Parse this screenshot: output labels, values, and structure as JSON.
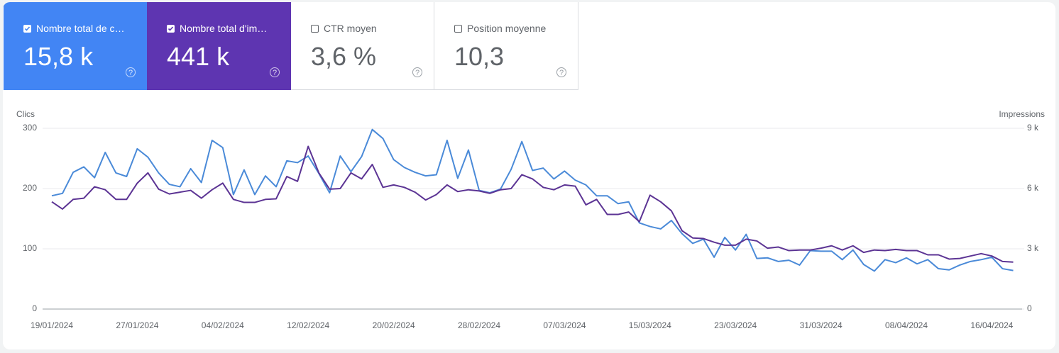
{
  "metrics": [
    {
      "label": "Nombre total de c…",
      "value": "15,8 k"
    },
    {
      "label": "Nombre total d'im…",
      "value": "441 k"
    },
    {
      "label": "CTR moyen",
      "value": "3,6 %"
    },
    {
      "label": "Position moyenne",
      "value": "10,3"
    }
  ],
  "chart_data": {
    "type": "line",
    "ylabel": "Clics",
    "y2label": "Impressions",
    "x": [
      "19/01/2024",
      "20/01/2024",
      "21/01/2024",
      "22/01/2024",
      "23/01/2024",
      "24/01/2024",
      "25/01/2024",
      "26/01/2024",
      "27/01/2024",
      "28/01/2024",
      "29/01/2024",
      "30/01/2024",
      "31/01/2024",
      "01/02/2024",
      "02/02/2024",
      "03/02/2024",
      "04/02/2024",
      "05/02/2024",
      "06/02/2024",
      "07/02/2024",
      "08/02/2024",
      "09/02/2024",
      "10/02/2024",
      "11/02/2024",
      "12/02/2024",
      "13/02/2024",
      "14/02/2024",
      "15/02/2024",
      "16/02/2024",
      "17/02/2024",
      "18/02/2024",
      "19/02/2024",
      "20/02/2024",
      "21/02/2024",
      "22/02/2024",
      "23/02/2024",
      "24/02/2024",
      "25/02/2024",
      "26/02/2024",
      "27/02/2024",
      "28/02/2024",
      "29/02/2024",
      "01/03/2024",
      "02/03/2024",
      "03/03/2024",
      "04/03/2024",
      "05/03/2024",
      "06/03/2024",
      "07/03/2024",
      "08/03/2024",
      "09/03/2024",
      "10/03/2024",
      "11/03/2024",
      "12/03/2024",
      "13/03/2024",
      "14/03/2024",
      "15/03/2024",
      "16/03/2024",
      "17/03/2024",
      "18/03/2024",
      "19/03/2024",
      "20/03/2024",
      "21/03/2024",
      "22/03/2024",
      "23/03/2024",
      "24/03/2024",
      "25/03/2024",
      "26/03/2024",
      "27/03/2024",
      "28/03/2024",
      "29/03/2024",
      "30/03/2024",
      "31/03/2024",
      "01/04/2024",
      "02/04/2024",
      "03/04/2024",
      "04/04/2024",
      "05/04/2024",
      "06/04/2024",
      "07/04/2024",
      "08/04/2024",
      "09/04/2024",
      "10/04/2024",
      "11/04/2024",
      "12/04/2024",
      "13/04/2024",
      "14/04/2024",
      "15/04/2024",
      "16/04/2024",
      "17/04/2024",
      "18/04/2024"
    ],
    "xticks": [
      "19/01/2024",
      "27/01/2024",
      "04/02/2024",
      "12/02/2024",
      "20/02/2024",
      "28/02/2024",
      "07/03/2024",
      "15/03/2024",
      "23/03/2024",
      "31/03/2024",
      "08/04/2024",
      "16/04/2024"
    ],
    "series": [
      {
        "name": "Clics",
        "color": "#4a8ad8",
        "axis": "y",
        "values": [
          188,
          192,
          227,
          236,
          218,
          260,
          226,
          220,
          266,
          252,
          226,
          207,
          203,
          233,
          210,
          280,
          268,
          190,
          231,
          190,
          221,
          203,
          246,
          243,
          254,
          225,
          193,
          254,
          228,
          253,
          298,
          283,
          248,
          235,
          227,
          221,
          223,
          280,
          217,
          264,
          197,
          193,
          199,
          232,
          278,
          230,
          234,
          216,
          229,
          214,
          206,
          188,
          188,
          175,
          178,
          143,
          137,
          133,
          147,
          125,
          109,
          116,
          86,
          119,
          98,
          124,
          84,
          85,
          79,
          81,
          73,
          97,
          96,
          96,
          82,
          98,
          74,
          63,
          82,
          77,
          85,
          75,
          82,
          67,
          65,
          73,
          79,
          82,
          86,
          67,
          64
        ]
      },
      {
        "name": "Impressions",
        "color": "#5c3494",
        "axis": "y2",
        "values": [
          5340,
          4980,
          5460,
          5520,
          6090,
          5940,
          5460,
          5460,
          6270,
          6780,
          5970,
          5730,
          5820,
          5910,
          5520,
          5940,
          6270,
          5460,
          5310,
          5310,
          5460,
          5490,
          6600,
          6360,
          8100,
          6780,
          5970,
          6000,
          6780,
          6480,
          7200,
          6060,
          6180,
          6060,
          5820,
          5430,
          5700,
          6180,
          5850,
          5940,
          5880,
          5760,
          5940,
          6000,
          6690,
          6480,
          6060,
          5940,
          6180,
          6120,
          5190,
          5460,
          4710,
          4710,
          4830,
          4350,
          5670,
          5340,
          4890,
          3900,
          3540,
          3510,
          3330,
          3180,
          3180,
          3480,
          3390,
          3030,
          3090,
          2910,
          2940,
          2940,
          3030,
          3150,
          2940,
          3150,
          2820,
          2940,
          2910,
          2970,
          2910,
          2910,
          2700,
          2700,
          2490,
          2520,
          2640,
          2760,
          2640,
          2370,
          2340
        ]
      }
    ],
    "ylim": [
      0,
      300
    ],
    "yticks": [
      0,
      100,
      200,
      300
    ],
    "y2lim": [
      0,
      9000
    ],
    "y2ticks": [
      0,
      {
        "value": 3000,
        "label": "3 k"
      },
      {
        "value": 6000,
        "label": "6 k"
      },
      {
        "value": 9000,
        "label": "9 k"
      }
    ],
    "grid": true
  }
}
